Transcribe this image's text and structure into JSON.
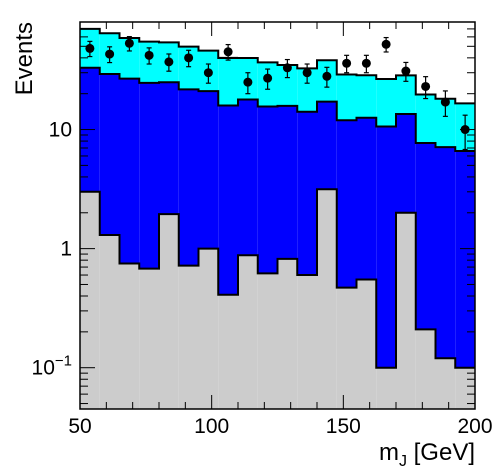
{
  "chart_data": {
    "type": "bar",
    "xlabel": "m_J [GeV]",
    "ylabel": "Events",
    "xlim": [
      50,
      200
    ],
    "ylim": [
      0.045,
      80
    ],
    "y_scale": "log",
    "grid": false,
    "x_ticks": [
      50,
      100,
      150,
      200
    ],
    "x_tick_labels": [
      "50",
      "100",
      "150",
      "200"
    ],
    "y_ticks": [
      0.1,
      1,
      10
    ],
    "y_tick_labels": [
      "10^-1",
      "1",
      "10"
    ],
    "bin_edges": [
      50,
      57.5,
      65,
      72.5,
      80,
      87.5,
      95,
      102.5,
      110,
      117.5,
      125,
      132.5,
      140,
      147.5,
      155,
      162.5,
      170,
      177.5,
      185,
      192.5,
      200
    ],
    "stack": [
      {
        "color": "#cccccc",
        "values": [
          3.0,
          1.3,
          0.75,
          0.68,
          1.95,
          0.72,
          1.0,
          0.41,
          0.88,
          0.62,
          0.82,
          0.6,
          3.15,
          0.47,
          0.55,
          0.1,
          2.0,
          0.21,
          0.12,
          0.1
        ]
      },
      {
        "color": "#0000ff",
        "values": [
          30,
          28,
          26,
          24,
          23,
          21,
          20,
          15.5,
          17,
          15,
          15,
          13.5,
          14,
          11.5,
          12,
          10.5,
          11.5,
          7.5,
          7,
          6.5
        ]
      },
      {
        "color": "#00ffff",
        "values": [
          37,
          35,
          32,
          30,
          29,
          28,
          25,
          24,
          22,
          21,
          19,
          18.5,
          21,
          17,
          16,
          16,
          15,
          12,
          11,
          10
        ]
      },
      {
        "color": "#00ff00",
        "values": [
          0,
          0,
          0,
          0,
          0,
          0,
          0,
          0.057,
          0,
          0,
          0,
          0,
          0,
          0,
          0,
          0,
          0,
          0,
          0,
          0
        ]
      }
    ],
    "data_points": {
      "x": [
        53.75,
        61.25,
        68.75,
        76.25,
        83.75,
        91.25,
        98.75,
        106.25,
        113.75,
        121.25,
        128.75,
        136.25,
        143.75,
        151.25,
        158.75,
        166.25,
        173.75,
        181.25,
        188.75,
        196.25
      ],
      "y": [
        48,
        43,
        53,
        42,
        37,
        40,
        30,
        45,
        25,
        27,
        33,
        30,
        28,
        36,
        36,
        52,
        31,
        23,
        17,
        10
      ],
      "yerr": [
        7,
        6.5,
        7.3,
        6.5,
        6.1,
        6.3,
        5.5,
        6.7,
        5,
        5.2,
        5.7,
        5.5,
        5.3,
        6,
        6,
        7.2,
        5.6,
        4.8,
        4.1,
        3.2
      ]
    }
  }
}
